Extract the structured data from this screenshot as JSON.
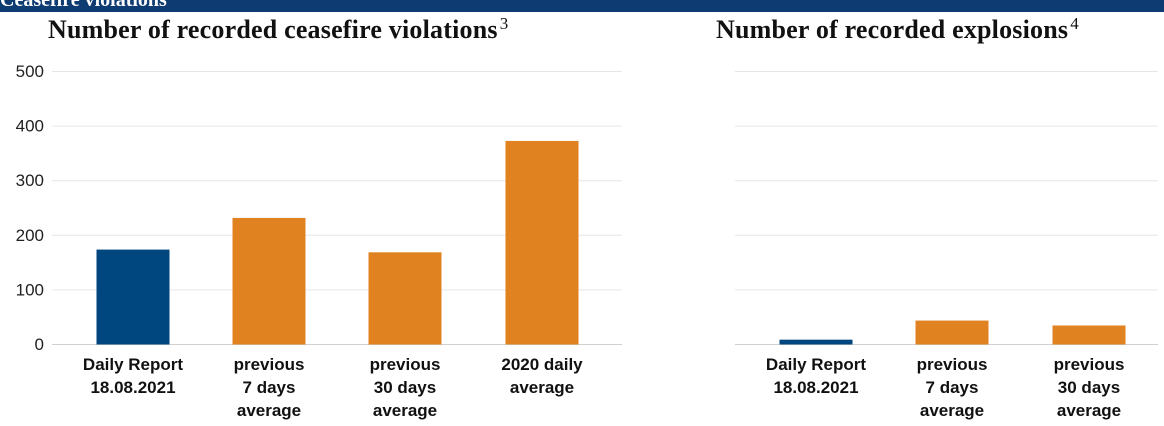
{
  "banner": {
    "text": "Ceasefire violations"
  },
  "colors": {
    "current": "#00467f",
    "comparison": "#e08220",
    "banner": "#0e3b72"
  },
  "chart_data": [
    {
      "type": "bar",
      "title": "Number of recorded ceasefire violations",
      "footnote": "3",
      "categories": [
        "Daily Report\n18.08.2021",
        "previous\n7 days\naverage",
        "previous\n30 days\naverage",
        "2020 daily\naverage"
      ],
      "values": [
        172,
        230,
        167,
        371
      ],
      "colors": [
        "#00467f",
        "#e08220",
        "#e08220",
        "#e08220"
      ],
      "ylim": [
        0,
        500
      ],
      "yticks": [
        "0",
        "100",
        "200",
        "300",
        "400",
        "500"
      ],
      "grid": true
    },
    {
      "type": "bar",
      "title": "Number of recorded explosions",
      "footnote": "4",
      "categories": [
        "Daily Report\n18.08.2021",
        "previous\n7 days\naverage",
        "previous\n30 days\naverage"
      ],
      "values": [
        7,
        42,
        33
      ],
      "colors": [
        "#00467f",
        "#e08220",
        "#e08220"
      ],
      "ylim": [
        0,
        500
      ],
      "grid": true
    }
  ]
}
